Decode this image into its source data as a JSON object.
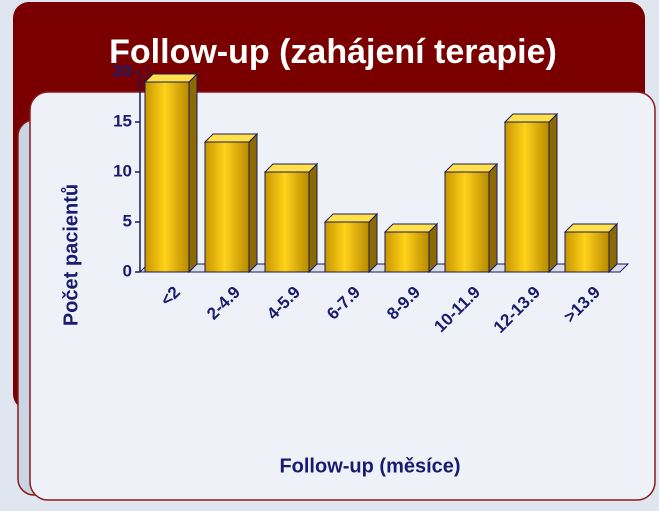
{
  "chart_data": {
    "type": "bar",
    "title": "Follow-up (zahájení terapie)",
    "x_label": "Follow-up (měsíce)",
    "y_label": "Počet pacientů",
    "categories": [
      "<2",
      "2-4.9",
      "4-5.9",
      "6-7.9",
      "8-9.9",
      "10-11.9",
      "12-13.9",
      ">13.9"
    ],
    "values": [
      19,
      13,
      10,
      5,
      4,
      10,
      15,
      4
    ],
    "color": "#f0c000",
    "ylim": [
      0,
      20
    ],
    "yticks": [
      0,
      5,
      10,
      15,
      20
    ]
  }
}
